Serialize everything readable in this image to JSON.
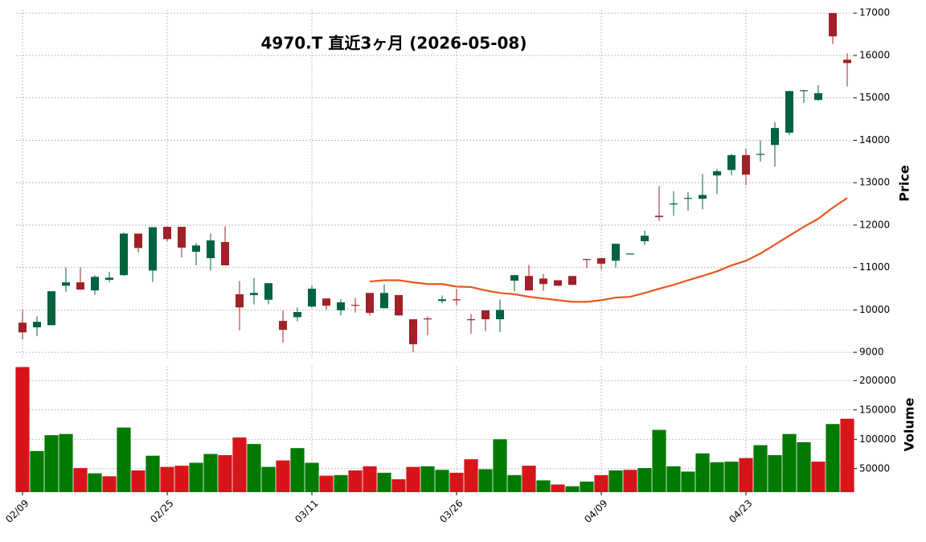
{
  "chart_data": {
    "type": "candlestick",
    "title": "4970.T  直近3ヶ月  (2026-05-08)",
    "categories": [
      "02/09",
      null,
      null,
      null,
      null,
      null,
      null,
      null,
      null,
      null,
      "02/25",
      null,
      null,
      null,
      null,
      null,
      null,
      null,
      null,
      null,
      "03/11",
      null,
      null,
      null,
      null,
      null,
      null,
      null,
      null,
      null,
      "03/26",
      null,
      null,
      null,
      null,
      null,
      null,
      null,
      null,
      null,
      "04/09",
      null,
      null,
      null,
      null,
      null,
      null,
      null,
      null,
      null,
      "04/23",
      null,
      null,
      null,
      null,
      null,
      null,
      null
    ],
    "open": [
      9700,
      9590,
      9640,
      10570,
      10650,
      10460,
      10710,
      10820,
      11800,
      10930,
      11960,
      11960,
      11370,
      11220,
      11600,
      10370,
      10350,
      10240,
      9740,
      9830,
      10080,
      10270,
      9990,
      10120,
      10400,
      10040,
      10350,
      9780,
      9800,
      10210,
      10250,
      9780,
      9990,
      9780,
      10690,
      10800,
      10740,
      10700,
      10800,
      11200,
      11220,
      11160,
      11310,
      11620,
      12220,
      12490,
      12620,
      12620,
      13170,
      13300,
      13650,
      13660,
      13890,
      14180,
      15160,
      14950,
      17000,
      15900
    ],
    "high": [
      10000,
      9850,
      10440,
      11000,
      11000,
      10820,
      10900,
      11820,
      11800,
      11950,
      11960,
      11960,
      11580,
      11800,
      11970,
      10680,
      10750,
      10630,
      9990,
      10060,
      10580,
      10270,
      10250,
      10280,
      10400,
      10600,
      10350,
      9780,
      9850,
      10340,
      10500,
      9900,
      9990,
      10250,
      10820,
      11060,
      10850,
      10700,
      10800,
      11200,
      11220,
      11560,
      11330,
      11870,
      12920,
      12800,
      12780,
      13200,
      13320,
      13680,
      13800,
      14000,
      14430,
      15160,
      15180,
      15300,
      17000,
      16050
    ],
    "low": [
      9300,
      9380,
      9640,
      10420,
      10470,
      10360,
      10650,
      10800,
      11360,
      10660,
      11620,
      11240,
      11050,
      10930,
      11050,
      9520,
      10130,
      10130,
      9230,
      9730,
      10050,
      10000,
      9870,
      9940,
      9870,
      10040,
      9870,
      9000,
      9400,
      10160,
      10110,
      9440,
      9500,
      9480,
      10440,
      10460,
      10450,
      10570,
      10590,
      10990,
      10950,
      11000,
      11310,
      11530,
      12100,
      12220,
      12340,
      12370,
      12730,
      13180,
      12950,
      13500,
      13380,
      14120,
      14880,
      14930,
      16270,
      15270
    ],
    "close": [
      9470,
      9720,
      10440,
      10650,
      10480,
      10780,
      10760,
      11800,
      11460,
      11950,
      11670,
      11470,
      11520,
      11640,
      11050,
      10060,
      10400,
      10630,
      9530,
      9950,
      10500,
      10100,
      10180,
      10100,
      9930,
      10400,
      9870,
      9190,
      9780,
      10250,
      10230,
      9760,
      9780,
      10000,
      10820,
      10460,
      10610,
      10570,
      10590,
      11180,
      11090,
      11560,
      11330,
      11750,
      12190,
      12510,
      12640,
      12710,
      13270,
      13650,
      13190,
      13680,
      14290,
      15160,
      15180,
      15110,
      16450,
      15820
    ],
    "volume": [
      223000,
      80000,
      107000,
      109000,
      51000,
      42000,
      37000,
      120000,
      47000,
      72000,
      53000,
      55000,
      60000,
      75000,
      73000,
      103000,
      92000,
      53000,
      64000,
      85000,
      60000,
      38000,
      39000,
      47000,
      54000,
      43000,
      32000,
      53000,
      54000,
      48000,
      43000,
      66000,
      49000,
      100000,
      39000,
      55000,
      30000,
      23000,
      20000,
      28000,
      39000,
      47000,
      48000,
      51000,
      116000,
      54000,
      45000,
      76000,
      61000,
      62000,
      68000,
      90000,
      73000,
      109000,
      95000,
      62000,
      126000,
      135000
    ],
    "ma": {
      "color": "#e8571e",
      "values": [
        null,
        null,
        null,
        null,
        null,
        null,
        null,
        null,
        null,
        null,
        null,
        null,
        null,
        null,
        null,
        null,
        null,
        null,
        null,
        null,
        null,
        null,
        null,
        null,
        10670,
        10700,
        10700,
        10650,
        10610,
        10610,
        10550,
        10540,
        10460,
        10400,
        10370,
        10310,
        10270,
        10230,
        10190,
        10190,
        10230,
        10290,
        10310,
        10400,
        10500,
        10590,
        10700,
        10800,
        10910,
        11050,
        11160,
        11330,
        11540,
        11750,
        11960,
        12150,
        12410,
        12640
      ]
    },
    "up_color": "#006340",
    "down_color": "#a02128",
    "volume_up_color": "#007a00",
    "volume_down_color": "#d7141a",
    "ylabel": "Price",
    "ylim": [
      8870,
      17080
    ],
    "yticks": [
      9000,
      10000,
      11000,
      12000,
      13000,
      14000,
      15000,
      16000,
      17000
    ],
    "volume_label": "Volume",
    "volume_ylim": [
      10000,
      225000
    ],
    "volume_yticks": [
      50000,
      100000,
      150000,
      200000
    ],
    "grid": true
  }
}
